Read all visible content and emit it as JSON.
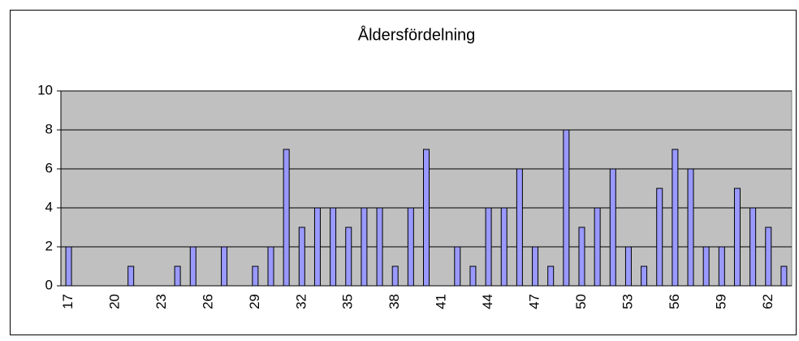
{
  "chart_data": {
    "type": "bar",
    "title": "Åldersfördelning",
    "categories": [
      17,
      null,
      null,
      20,
      null,
      null,
      23,
      null,
      null,
      26,
      null,
      null,
      29,
      null,
      null,
      32,
      null,
      null,
      35,
      null,
      null,
      38,
      null,
      null,
      41,
      null,
      null,
      44,
      null,
      null,
      47,
      null,
      null,
      50,
      null,
      null,
      53,
      null,
      null,
      56,
      null,
      null,
      59,
      null,
      null,
      62,
      null
    ],
    "values": [
      2,
      0,
      0,
      0,
      1,
      0,
      0,
      1,
      2,
      0,
      2,
      0,
      1,
      2,
      7,
      3,
      4,
      4,
      3,
      4,
      4,
      1,
      4,
      7,
      0,
      2,
      1,
      4,
      4,
      6,
      2,
      1,
      8,
      3,
      4,
      6,
      2,
      1,
      5,
      7,
      6,
      2,
      2,
      5,
      4,
      3,
      1
    ],
    "color": "#9999ff",
    "plot_background": "#c0c0c0",
    "ylim": [
      0,
      10
    ],
    "yticks": [
      0,
      2,
      4,
      6,
      8,
      10
    ],
    "grid": true
  }
}
